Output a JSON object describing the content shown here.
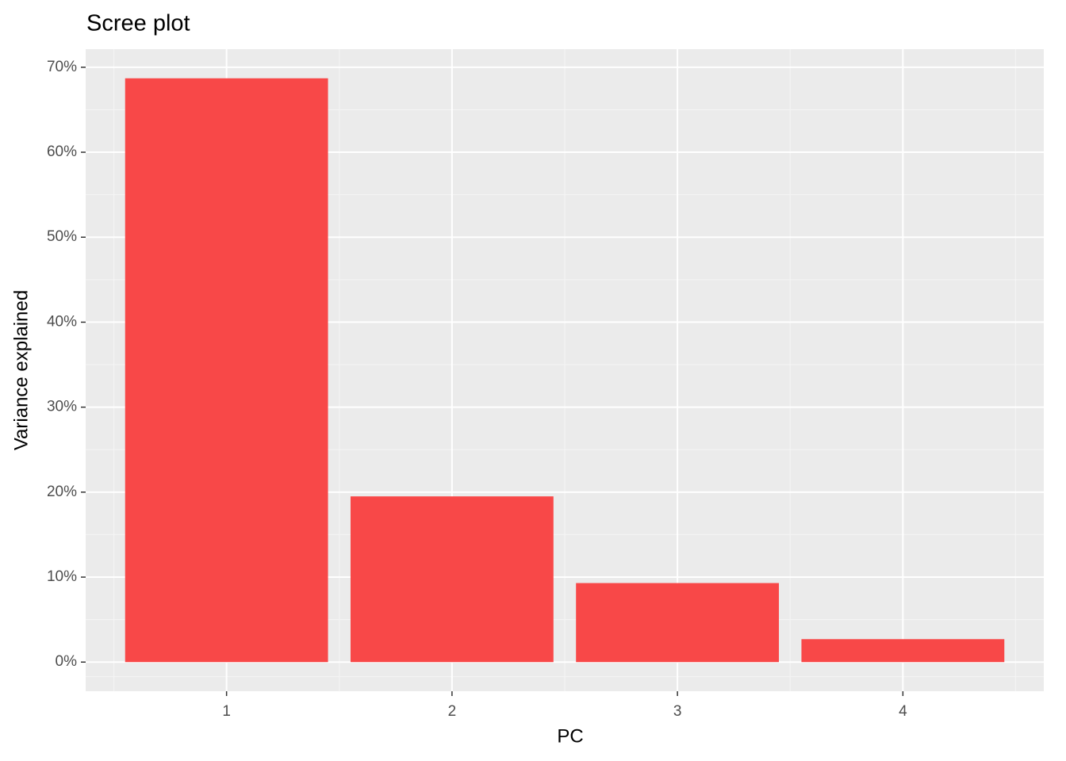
{
  "chart_data": {
    "type": "bar",
    "title": "Scree plot",
    "x_label": "PC",
    "y_label": "Variance explained",
    "categories": [
      "1",
      "2",
      "3",
      "4"
    ],
    "values": [
      68.7,
      19.5,
      9.3,
      2.7
    ],
    "color": "#f84848",
    "ylim": [
      -3.43,
      72.13
    ],
    "yticks": [
      {
        "value": 0,
        "label": "0%"
      },
      {
        "value": 10,
        "label": "10%"
      },
      {
        "value": 20,
        "label": "20%"
      },
      {
        "value": 30,
        "label": "30%"
      },
      {
        "value": 40,
        "label": "40%"
      },
      {
        "value": 50,
        "label": "50%"
      },
      {
        "value": 60,
        "label": "60%"
      },
      {
        "value": 70,
        "label": "70%"
      }
    ],
    "grid": true
  }
}
